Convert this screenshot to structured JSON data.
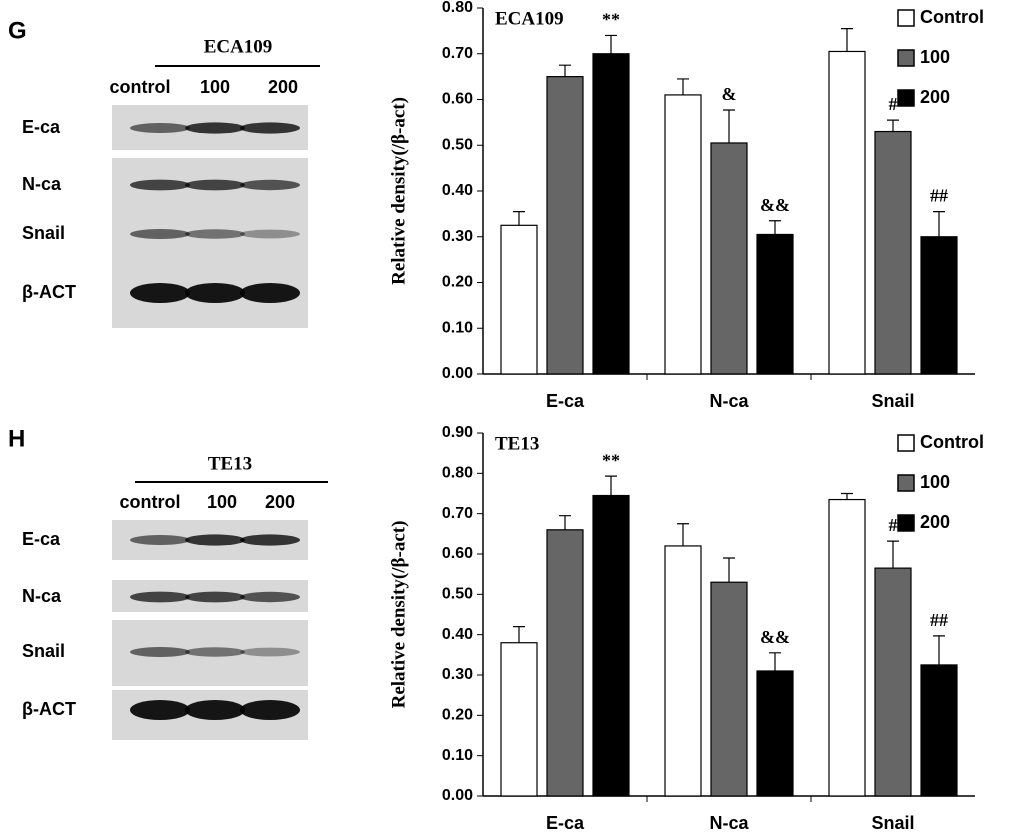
{
  "panels": [
    {
      "letter": "G",
      "cell_line": "ECA109",
      "lanes": [
        "control",
        "100",
        "200"
      ],
      "proteins": [
        "E-ca",
        "N-ca",
        "Snail",
        "β-ACT"
      ]
    },
    {
      "letter": "H",
      "cell_line": "TE13",
      "lanes": [
        "control",
        "100",
        "200"
      ],
      "proteins": [
        "E-ca",
        "N-ca",
        "Snail",
        "β-ACT"
      ]
    }
  ],
  "chart_data": [
    {
      "type": "bar",
      "title": "ECA109",
      "y_label": "Relative density(/β-act)",
      "categories": [
        "E-ca",
        "N-ca",
        "Snail"
      ],
      "series": [
        {
          "name": "Control",
          "color": "#ffffff",
          "values": [
            0.325,
            0.61,
            0.705
          ],
          "errors": [
            0.03,
            0.035,
            0.05
          ],
          "annotations": [
            null,
            null,
            null
          ]
        },
        {
          "name": "100",
          "color": "#666666",
          "values": [
            0.65,
            0.505,
            0.53
          ],
          "errors": [
            0.025,
            0.072,
            0.025
          ],
          "annotations": [
            null,
            "&",
            "#"
          ]
        },
        {
          "name": "200",
          "color": "#000000",
          "values": [
            0.7,
            0.305,
            0.3
          ],
          "errors": [
            0.04,
            0.03,
            0.055
          ],
          "annotations": [
            "**",
            "&&",
            "##"
          ]
        }
      ],
      "ylim": [
        0,
        0.8
      ],
      "yticks": [
        {
          "value": 0,
          "label": "0.00"
        },
        {
          "value": 0.1,
          "label": "0.10"
        },
        {
          "value": 0.2,
          "label": "0.20"
        },
        {
          "value": 0.3,
          "label": "0.30"
        },
        {
          "value": 0.4,
          "label": "0.40"
        },
        {
          "value": 0.5,
          "label": "0.50"
        },
        {
          "value": 0.6,
          "label": "0.60"
        },
        {
          "value": 0.7,
          "label": "0.70"
        },
        {
          "value": 0.8,
          "label": "0.80"
        }
      ],
      "legend": "upper right"
    },
    {
      "type": "bar",
      "title": "TE13",
      "y_label": "Relative density(/β-act)",
      "categories": [
        "E-ca",
        "N-ca",
        "Snail"
      ],
      "series": [
        {
          "name": "Control",
          "color": "#ffffff",
          "values": [
            0.38,
            0.62,
            0.735
          ],
          "errors": [
            0.04,
            0.055,
            0.015
          ],
          "annotations": [
            null,
            null,
            null
          ]
        },
        {
          "name": "100",
          "color": "#666666",
          "values": [
            0.66,
            0.53,
            0.565
          ],
          "errors": [
            0.035,
            0.06,
            0.067
          ],
          "annotations": [
            null,
            null,
            "#"
          ]
        },
        {
          "name": "200",
          "color": "#000000",
          "values": [
            0.745,
            0.31,
            0.325
          ],
          "errors": [
            0.048,
            0.045,
            0.072
          ],
          "annotations": [
            "**",
            "&&",
            "##"
          ]
        }
      ],
      "ylim": [
        0,
        0.9
      ],
      "yticks": [
        {
          "value": 0,
          "label": "0.00"
        },
        {
          "value": 0.1,
          "label": "0.10"
        },
        {
          "value": 0.2,
          "label": "0.20"
        },
        {
          "value": 0.3,
          "label": "0.30"
        },
        {
          "value": 0.4,
          "label": "0.40"
        },
        {
          "value": 0.5,
          "label": "0.50"
        },
        {
          "value": 0.6,
          "label": "0.60"
        },
        {
          "value": 0.7,
          "label": "0.70"
        },
        {
          "value": 0.8,
          "label": "0.80"
        },
        {
          "value": 0.9,
          "label": "0.90"
        }
      ],
      "legend": "upper right"
    }
  ]
}
